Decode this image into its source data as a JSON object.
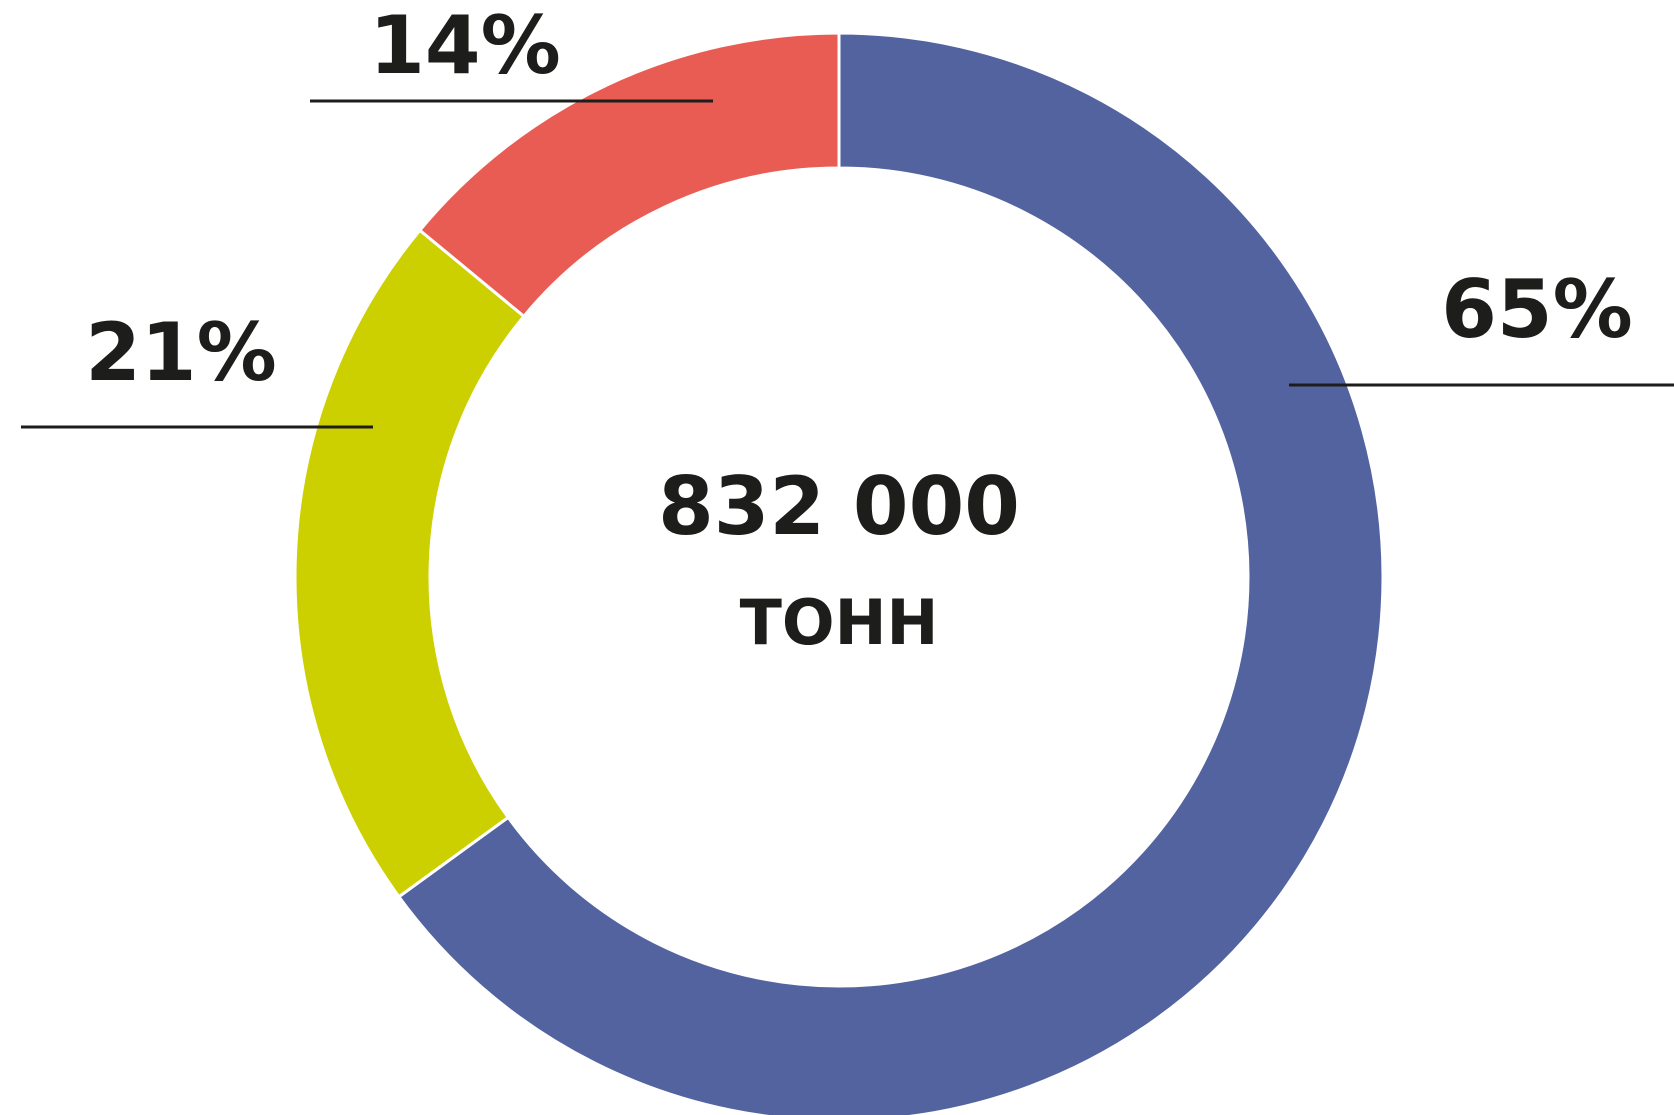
{
  "chart_data": {
    "type": "pie",
    "donut": true,
    "values": [
      65,
      21,
      14
    ],
    "value_labels": [
      "65%",
      "21%",
      "14%"
    ],
    "colors": [
      "#5263a0",
      "#cdd000",
      "#e95c53"
    ],
    "center_label": "832 000",
    "center_sublabel": "ТОНН"
  }
}
